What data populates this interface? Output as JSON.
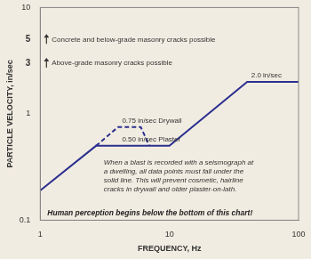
{
  "chart_data": {
    "type": "line",
    "log": true,
    "grid": false,
    "tick_labels": true,
    "x_label": "FREQUENCY, Hz",
    "y_label": "PARTICLE VELOCITY, in/sec",
    "xlim": [
      1,
      100
    ],
    "xticks": [
      1,
      10,
      100
    ],
    "ylim": [
      0.1,
      10
    ],
    "yticks": [
      0.1,
      1,
      3,
      5,
      10
    ],
    "series": [
      {
        "color": "#2b2f8f",
        "line_style": "solid",
        "marker": "none",
        "x": [
          1,
          2.7,
          10,
          40,
          100
        ],
        "values": [
          0.19,
          0.5,
          0.5,
          2,
          2
        ]
      },
      {
        "color": "#2b2f8f",
        "line_style": "dashed",
        "marker": "none",
        "x": [
          2.7,
          4,
          6,
          7
        ],
        "values": [
          0.5,
          0.75,
          0.75,
          0.5
        ]
      }
    ],
    "thresholds": [
      {
        "value": 5,
        "text": "Concrete and below-grade masonry cracks possible"
      },
      {
        "value": 3,
        "text": "Above-grade masonry cracks possible"
      }
    ],
    "line_labels": [
      {
        "text": "0.75 in/sec Drywall",
        "x": 4.3,
        "y": 0.75
      },
      {
        "text": "0.50 in/sec Plaster",
        "x": 4.3,
        "y": 0.5
      },
      {
        "text": "2.0 in/sec",
        "x": 43,
        "y": 2
      }
    ],
    "note": [
      "When a blast is recorded with a seismograph at",
      "a dwelling, all data points must fall under the",
      "solid line. This will prevent cosmetic, hairline",
      "cracks in drywall and older plaster-on-lath."
    ],
    "footer_note": "Human perception begins below the bottom of this chart!"
  }
}
